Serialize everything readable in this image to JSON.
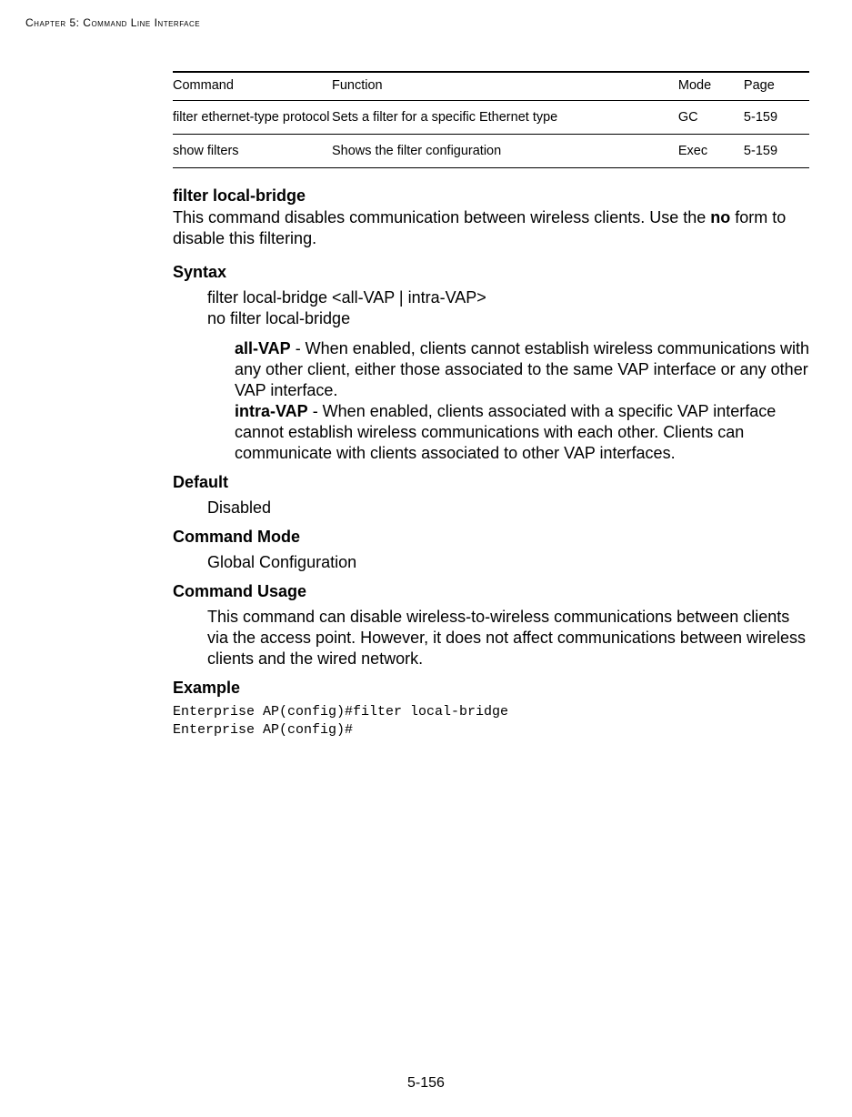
{
  "running_head": "Chapter 5: Command Line Interface",
  "table": {
    "headers": {
      "cmd": "Command",
      "func": "Function",
      "mode": "Mode",
      "page": "Page"
    },
    "rows": [
      {
        "cmd": "filter ethernet-type protocol",
        "func": "Sets a filter for a specific Ethernet type",
        "mode": "GC",
        "page": "5-159"
      },
      {
        "cmd": "show filters",
        "func": "Shows the filter configuration",
        "mode": "Exec",
        "page": "5-159"
      }
    ]
  },
  "section": {
    "title": "filter local-bridge",
    "intro_pre": "This command disables communication between wireless clients. Use the ",
    "intro_bold": "no",
    "intro_post": " form to disable this filtering.",
    "syntax_label": "Syntax",
    "syntax_line1": "filter local-bridge <all-VAP | intra-VAP>",
    "syntax_line2": "no filter local-bridge",
    "opt1_term": "all-VAP",
    "opt1_desc": " - When enabled, clients cannot establish wireless communications with any other client, either those associated to the same VAP interface or any other VAP interface.",
    "opt2_term": "intra-VAP",
    "opt2_desc": " - When enabled, clients associated with a specific VAP interface cannot establish wireless communications with each other. Clients can communicate with clients associated to other VAP interfaces.",
    "default_label": "Default",
    "default_value": "Disabled",
    "mode_label": "Command Mode",
    "mode_value": "Global Configuration",
    "usage_label": "Command Usage",
    "usage_text": "This command can disable wireless-to-wireless communications between clients via the access point. However, it does not affect communications between wireless clients and the wired network.",
    "example_label": "Example",
    "example_code": "Enterprise AP(config)#filter local-bridge\nEnterprise AP(config)#"
  },
  "page_number": "5-156"
}
